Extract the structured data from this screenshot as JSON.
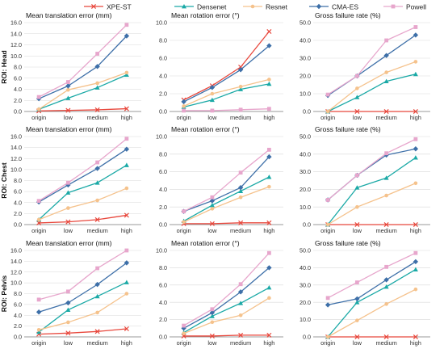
{
  "legend": [
    {
      "name": "XPE-ST",
      "color": "#e8473c",
      "marker": "x"
    },
    {
      "name": "Densenet",
      "color": "#1aa9a6",
      "marker": "triangle"
    },
    {
      "name": "Resnet",
      "color": "#f5c28c",
      "marker": "circle"
    },
    {
      "name": "CMA-ES",
      "color": "#3d6fa8",
      "marker": "diamond"
    },
    {
      "name": "Powell",
      "color": "#e7a6cc",
      "marker": "square"
    }
  ],
  "rows": [
    "ROI: Head",
    "ROI: Chest",
    "ROI: Pelvis"
  ],
  "chart_data": [
    {
      "type": "line",
      "row": "ROI: Head",
      "title": "Mean translation error (mm)",
      "categories": [
        "origin",
        "low",
        "medium",
        "high"
      ],
      "ylim": [
        0,
        16
      ],
      "yticks": [
        "0.0",
        "2.0",
        "4.0",
        "6.0",
        "8.0",
        "10.0",
        "12.0",
        "14.0",
        "16.0"
      ],
      "series": [
        {
          "name": "XPE-ST",
          "values": [
            0.1,
            0.2,
            0.3,
            0.5
          ]
        },
        {
          "name": "Densenet",
          "values": [
            0.4,
            2.4,
            4.3,
            6.6
          ]
        },
        {
          "name": "Resnet",
          "values": [
            0.4,
            3.9,
            5.1,
            7.0
          ]
        },
        {
          "name": "CMA-ES",
          "values": [
            2.3,
            4.6,
            8.1,
            13.6
          ]
        },
        {
          "name": "Powell",
          "values": [
            2.6,
            5.3,
            10.4,
            15.6
          ]
        }
      ]
    },
    {
      "type": "line",
      "row": "ROI: Head",
      "title": "Mean rotation error (°)",
      "categories": [
        "origin",
        "low",
        "medium",
        "high"
      ],
      "ylim": [
        0,
        10
      ],
      "yticks": [
        "0.0",
        "2.0",
        "4.0",
        "6.0",
        "8.0",
        "10.0"
      ],
      "series": [
        {
          "name": "XPE-ST",
          "values": [
            1.3,
            2.9,
            5.0,
            9.0
          ]
        },
        {
          "name": "Densenet",
          "values": [
            0.5,
            1.3,
            2.5,
            3.1
          ]
        },
        {
          "name": "Resnet",
          "values": [
            0.6,
            2.0,
            2.8,
            3.6
          ]
        },
        {
          "name": "CMA-ES",
          "values": [
            1.1,
            2.7,
            4.7,
            7.4
          ]
        },
        {
          "name": "Powell",
          "values": [
            0.1,
            0.1,
            0.2,
            0.3
          ]
        }
      ]
    },
    {
      "type": "line",
      "row": "ROI: Head",
      "title": "Gross failure rate (%)",
      "categories": [
        "origin",
        "low",
        "medium",
        "high"
      ],
      "ylim": [
        0,
        50
      ],
      "yticks": [
        "0.0",
        "10.0",
        "20.0",
        "30.0",
        "40.0",
        "50.0"
      ],
      "series": [
        {
          "name": "XPE-ST",
          "values": [
            0.0,
            0.0,
            0.0,
            0.0
          ]
        },
        {
          "name": "Densenet",
          "values": [
            0.0,
            8.0,
            17.0,
            21.0
          ]
        },
        {
          "name": "Resnet",
          "values": [
            0.0,
            13.0,
            22.0,
            28.0
          ]
        },
        {
          "name": "CMA-ES",
          "values": [
            9.0,
            20.0,
            31.5,
            43.0
          ]
        },
        {
          "name": "Powell",
          "values": [
            9.5,
            20.0,
            40.0,
            47.5
          ]
        }
      ]
    },
    {
      "type": "line",
      "row": "ROI: Chest",
      "title": "Mean translation error (mm)",
      "categories": [
        "origin",
        "low",
        "medium",
        "high"
      ],
      "ylim": [
        0,
        16
      ],
      "yticks": [
        "0.0",
        "2.0",
        "4.0",
        "6.0",
        "8.0",
        "10.0",
        "12.0",
        "14.0",
        "16.0"
      ],
      "series": [
        {
          "name": "XPE-ST",
          "values": [
            0.3,
            0.5,
            0.9,
            1.7
          ]
        },
        {
          "name": "Densenet",
          "values": [
            0.9,
            5.8,
            7.6,
            10.8
          ]
        },
        {
          "name": "Resnet",
          "values": [
            0.9,
            3.0,
            4.4,
            6.6
          ]
        },
        {
          "name": "CMA-ES",
          "values": [
            4.1,
            7.2,
            10.2,
            13.7
          ]
        },
        {
          "name": "Powell",
          "values": [
            4.3,
            7.6,
            11.3,
            15.6
          ]
        }
      ]
    },
    {
      "type": "line",
      "row": "ROI: Chest",
      "title": "Mean rotation error (°)",
      "categories": [
        "origin",
        "low",
        "medium",
        "high"
      ],
      "ylim": [
        0,
        10
      ],
      "yticks": [
        "0.0",
        "2.0",
        "4.0",
        "6.0",
        "8.0",
        "10.0"
      ],
      "series": [
        {
          "name": "XPE-ST",
          "values": [
            0.1,
            0.1,
            0.2,
            0.2
          ]
        },
        {
          "name": "Densenet",
          "values": [
            0.4,
            2.2,
            3.8,
            5.4
          ]
        },
        {
          "name": "Resnet",
          "values": [
            0.3,
            1.8,
            3.1,
            4.3
          ]
        },
        {
          "name": "CMA-ES",
          "values": [
            1.5,
            2.7,
            4.2,
            7.7
          ]
        },
        {
          "name": "Powell",
          "values": [
            1.5,
            3.1,
            5.9,
            8.5
          ]
        }
      ]
    },
    {
      "type": "line",
      "row": "ROI: Chest",
      "title": "Gross failure rate (%)",
      "categories": [
        "origin",
        "low",
        "medium",
        "high"
      ],
      "ylim": [
        0,
        50
      ],
      "yticks": [
        "0.0",
        "10.0",
        "20.0",
        "30.0",
        "40.0",
        "50.0"
      ],
      "series": [
        {
          "name": "XPE-ST",
          "values": [
            0.0,
            0.0,
            0.0,
            0.0
          ]
        },
        {
          "name": "Densenet",
          "values": [
            0.0,
            21.0,
            26.5,
            38.0
          ]
        },
        {
          "name": "Resnet",
          "values": [
            0.0,
            10.0,
            16.5,
            23.5
          ]
        },
        {
          "name": "CMA-ES",
          "values": [
            14.0,
            28.0,
            39.5,
            43.0
          ]
        },
        {
          "name": "Powell",
          "values": [
            14.0,
            28.0,
            40.5,
            48.5
          ]
        }
      ]
    },
    {
      "type": "line",
      "row": "ROI: Pelvis",
      "title": "Mean translation error (mm)",
      "categories": [
        "origin",
        "low",
        "medium",
        "high"
      ],
      "ylim": [
        0,
        16
      ],
      "yticks": [
        "0.0",
        "2.0",
        "4.0",
        "6.0",
        "8.0",
        "10.0",
        "12.0",
        "14.0",
        "16.0"
      ],
      "series": [
        {
          "name": "XPE-ST",
          "values": [
            0.5,
            0.7,
            1.0,
            1.5
          ]
        },
        {
          "name": "Densenet",
          "values": [
            0.9,
            5.0,
            7.5,
            10.1
          ]
        },
        {
          "name": "Resnet",
          "values": [
            1.3,
            2.7,
            4.5,
            8.0
          ]
        },
        {
          "name": "CMA-ES",
          "values": [
            4.6,
            6.3,
            9.7,
            13.7
          ]
        },
        {
          "name": "Powell",
          "values": [
            6.9,
            8.4,
            12.7,
            16.0
          ]
        }
      ]
    },
    {
      "type": "line",
      "row": "ROI: Pelvis",
      "title": "Mean rotation error (°)",
      "categories": [
        "origin",
        "low",
        "medium",
        "high"
      ],
      "ylim": [
        0,
        10
      ],
      "yticks": [
        "0.0",
        "2.0",
        "4.0",
        "6.0",
        "8.0",
        "10.0"
      ],
      "series": [
        {
          "name": "XPE-ST",
          "values": [
            0.1,
            0.1,
            0.2,
            0.2
          ]
        },
        {
          "name": "Densenet",
          "values": [
            0.5,
            2.4,
            3.9,
            5.7
          ]
        },
        {
          "name": "Resnet",
          "values": [
            0.4,
            1.7,
            2.5,
            4.5
          ]
        },
        {
          "name": "CMA-ES",
          "values": [
            1.0,
            2.8,
            5.2,
            8.0
          ]
        },
        {
          "name": "Powell",
          "values": [
            1.3,
            3.2,
            6.1,
            9.7
          ]
        }
      ]
    },
    {
      "type": "line",
      "row": "ROI: Pelvis",
      "title": "Gross failure rate (%)",
      "categories": [
        "origin",
        "low",
        "medium",
        "high"
      ],
      "ylim": [
        0,
        50
      ],
      "yticks": [
        "0.0",
        "10.0",
        "20.0",
        "30.0",
        "40.0",
        "50.0"
      ],
      "series": [
        {
          "name": "XPE-ST",
          "values": [
            0.0,
            0.0,
            0.0,
            0.0
          ]
        },
        {
          "name": "Densenet",
          "values": [
            0.0,
            20.0,
            29.0,
            39.0
          ]
        },
        {
          "name": "Resnet",
          "values": [
            0.0,
            9.5,
            19.0,
            27.5
          ]
        },
        {
          "name": "CMA-ES",
          "values": [
            18.5,
            22.0,
            33.0,
            43.5
          ]
        },
        {
          "name": "Powell",
          "values": [
            22.5,
            31.5,
            40.5,
            48.5
          ]
        }
      ]
    }
  ]
}
